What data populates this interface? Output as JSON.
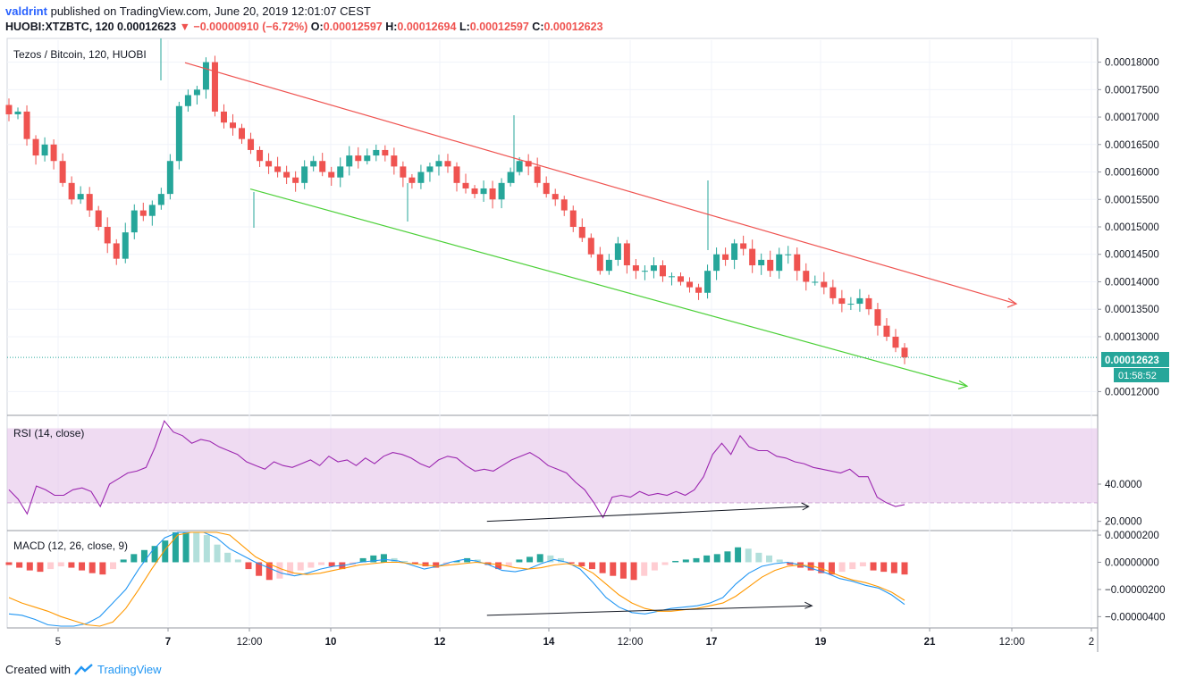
{
  "header": {
    "author": "valdrint",
    "published": "published on TradingView.com, June 20, 2019 12:01:07 CEST",
    "symbol": "HUOBI:XTZBTC, 120",
    "last": "0.00012623",
    "change_arrow": "▼",
    "change": "−0.00000910 (−6.72%)",
    "o_label": "O:",
    "o": "0.00012597",
    "h_label": "H:",
    "h": "0.00012694",
    "l_label": "L:",
    "l": "0.00012597",
    "c_label": "C:",
    "c": "0.00012623"
  },
  "footer": {
    "created_with": "Created with",
    "brand": "TradingView"
  },
  "colors": {
    "up": "#26a69a",
    "down": "#ef5350",
    "upper_trend": "#ef5350",
    "lower_trend": "#4caf50",
    "rsi_line": "#9c27b0",
    "macd_line": "#2196f3",
    "signal_line": "#ff9800",
    "price_line": "#26a69a"
  },
  "chart_data": [
    {
      "type": "candlestick",
      "pane": "price",
      "title": "Tezos / Bitcoin, 120, HUOBI",
      "y_ticks": [
        "0.00018000",
        "0.00017500",
        "0.00017000",
        "0.00016500",
        "0.00016000",
        "0.00015500",
        "0.00015000",
        "0.00014500",
        "0.00014000",
        "0.00013500",
        "0.00013000",
        "0.00012000"
      ],
      "ylim": [
        0.000116,
        0.000184
      ],
      "last_price_label": "0.00012623",
      "countdown_label": "01:58:52",
      "last_price": 0.00012623,
      "x_ticks": [
        "5",
        "7",
        "12:00",
        "10",
        "12",
        "14",
        "12:00",
        "17",
        "19",
        "21",
        "12:00",
        "2"
      ],
      "bold_ticks": [
        "7",
        "10",
        "12",
        "14",
        "17",
        "19",
        "21"
      ],
      "upper_trendline": [
        [
          0,
          0.0001799
        ],
        [
          1,
          0.000136
        ]
      ],
      "lower_trendline": [
        [
          0,
          0.0001569
        ],
        [
          1,
          0.000121
        ]
      ],
      "ohlc_close_path": [
        0.0001705,
        0.000171,
        0.000166,
        0.000163,
        0.000165,
        0.000162,
        0.000158,
        0.000155,
        0.000156,
        0.000153,
        0.00015,
        0.000147,
        0.0001442,
        0.000149,
        0.000153,
        0.000152,
        0.000154,
        0.000156,
        0.000162,
        0.000172,
        0.000174,
        0.000175,
        0.00018,
        0.000171,
        0.000169,
        0.000168,
        0.000166,
        0.000164,
        0.000162,
        0.000161,
        0.00016,
        0.000159,
        0.000158,
        0.000161,
        0.000162,
        0.00016,
        0.000159,
        0.000161,
        0.000163,
        0.000162,
        0.000163,
        0.000164,
        0.000163,
        0.000161,
        0.000159,
        0.000158,
        0.00016,
        0.000161,
        0.000162,
        0.000161,
        0.000158,
        0.000157,
        0.000156,
        0.000157,
        0.000155,
        0.000158,
        0.00016,
        0.000162,
        0.000161,
        0.000158,
        0.000156,
        0.000155,
        0.000153,
        0.00015,
        0.000148,
        0.000145,
        0.000142,
        0.000144,
        0.000147,
        0.000143,
        0.000142,
        0.000142,
        0.000143,
        0.000141,
        0.000141,
        0.00014,
        0.000139,
        0.000138,
        0.000142,
        0.000145,
        0.000144,
        0.000147,
        0.000146,
        0.000143,
        0.000144,
        0.000142,
        0.000145,
        0.000145,
        0.000142,
        0.00014,
        0.00014,
        0.000139,
        0.000137,
        0.000136,
        0.000136,
        0.000137,
        0.000135,
        0.000132,
        0.00013,
        0.000128,
        0.00012623
      ]
    },
    {
      "type": "line",
      "pane": "rsi",
      "title": "RSI (14, close)",
      "y_ticks": [
        "40.0000",
        "20.0000"
      ],
      "ylim": [
        16,
        76
      ],
      "band": [
        30,
        70
      ],
      "divergence_arrow": [
        [
          0.44,
          20
        ],
        [
          0.735,
          28
        ]
      ],
      "values": [
        37,
        32,
        24,
        39,
        37,
        34,
        34,
        37,
        38,
        36,
        28,
        40,
        43,
        46,
        47,
        49,
        60,
        74,
        68,
        66,
        62,
        64,
        63,
        60,
        58,
        56,
        52,
        50,
        48,
        52,
        50,
        49,
        51,
        53,
        50,
        55,
        52,
        53,
        50,
        54,
        51,
        55,
        57,
        56,
        54,
        51,
        49,
        53,
        55,
        54,
        50,
        47,
        48,
        47,
        50,
        53,
        55,
        57,
        54,
        50,
        48,
        46,
        41,
        37,
        30,
        22,
        33,
        34,
        33,
        36,
        34,
        35,
        34,
        36,
        34,
        37,
        44,
        56,
        62,
        56,
        66,
        60,
        58,
        58,
        55,
        54,
        52,
        51,
        49,
        48,
        47,
        46,
        48,
        44,
        44,
        33,
        30,
        28,
        29
      ]
    },
    {
      "type": "bar+line",
      "pane": "macd",
      "title": "MACD (12, 26, close, 9)",
      "y_ticks": [
        "0.00000200",
        "0.00000000",
        "−0.00000200",
        "−0.00000400"
      ],
      "ylim": [
        -4.7e-06,
        2.2e-06
      ],
      "divergence_arrow": [
        [
          0.44,
          -3.9e-06
        ],
        [
          0.738,
          -3.2e-06
        ]
      ],
      "histogram": [
        -0.2,
        -0.4,
        -0.6,
        -0.7,
        -0.5,
        -0.3,
        -0.4,
        -0.6,
        -0.8,
        -0.9,
        -0.5,
        0.2,
        0.6,
        0.9,
        1.2,
        1.6,
        2.2,
        3.0,
        2.6,
        2.0,
        1.3,
        0.7,
        0.2,
        -0.5,
        -1.0,
        -1.3,
        -1.2,
        -0.9,
        -0.6,
        -0.4,
        -0.2,
        -0.3,
        -0.5,
        -0.2,
        0.3,
        0.5,
        0.6,
        0.3,
        0.1,
        -0.1,
        -0.3,
        -0.4,
        -0.2,
        0.1,
        0.3,
        0.2,
        -0.2,
        -0.5,
        -0.3,
        0.2,
        0.4,
        0.6,
        0.5,
        0.3,
        -0.1,
        -0.3,
        -0.5,
        -0.8,
        -1.0,
        -1.2,
        -1.3,
        -1.0,
        -0.6,
        -0.2,
        0.1,
        0.2,
        0.3,
        0.5,
        0.6,
        0.8,
        1.1,
        1.0,
        0.7,
        0.5,
        0.2,
        -0.2,
        -0.4,
        -0.6,
        -0.8,
        -0.9,
        -0.7,
        -0.5,
        -0.3,
        -0.6,
        -0.7,
        -0.8,
        -0.9
      ],
      "macd_line": [
        -3.8,
        -3.9,
        -4.2,
        -4.6,
        -4.8,
        -4.7,
        -4.5,
        -4.0,
        -3.0,
        -2.0,
        -0.5,
        0.8,
        1.8,
        2.5,
        3.0,
        2.6,
        1.8,
        1.0,
        0.5,
        0.0,
        -0.4,
        -0.8,
        -1.0,
        -0.8,
        -0.5,
        -0.3,
        -0.2,
        0.0,
        0.1,
        0.2,
        0.1,
        -0.2,
        -0.5,
        -0.3,
        0.0,
        0.2,
        0.1,
        -0.2,
        -0.6,
        -0.7,
        -0.5,
        -0.1,
        0.2,
        0.0,
        -0.5,
        -1.5,
        -2.6,
        -3.3,
        -3.7,
        -3.8,
        -3.6,
        -3.4,
        -3.3,
        -3.2,
        -3.0,
        -2.6,
        -1.6,
        -0.8,
        -0.3,
        -0.1,
        0.0,
        -0.2,
        -0.5,
        -0.8,
        -1.2,
        -1.4,
        -1.7,
        -1.9,
        -2.4,
        -3.1
      ],
      "signal_line": [
        -2.6,
        -3.0,
        -3.3,
        -3.6,
        -4.0,
        -4.3,
        -4.6,
        -4.8,
        -4.4,
        -3.4,
        -2.0,
        -0.5,
        0.9,
        2.0,
        2.6,
        2.8,
        2.6,
        2.0,
        1.2,
        0.4,
        -0.1,
        -0.5,
        -0.8,
        -0.9,
        -0.8,
        -0.6,
        -0.4,
        -0.2,
        -0.1,
        0.0,
        0.0,
        -0.1,
        -0.2,
        -0.3,
        -0.2,
        -0.1,
        0.0,
        -0.1,
        -0.2,
        -0.4,
        -0.5,
        -0.4,
        -0.2,
        -0.1,
        -0.3,
        -0.8,
        -1.6,
        -2.4,
        -3.0,
        -3.4,
        -3.6,
        -3.6,
        -3.5,
        -3.4,
        -3.2,
        -3.0,
        -2.5,
        -1.8,
        -1.1,
        -0.6,
        -0.3,
        -0.2,
        -0.3,
        -0.6,
        -1.0,
        -1.3,
        -1.5,
        -1.8,
        -2.2,
        -2.8
      ]
    }
  ]
}
